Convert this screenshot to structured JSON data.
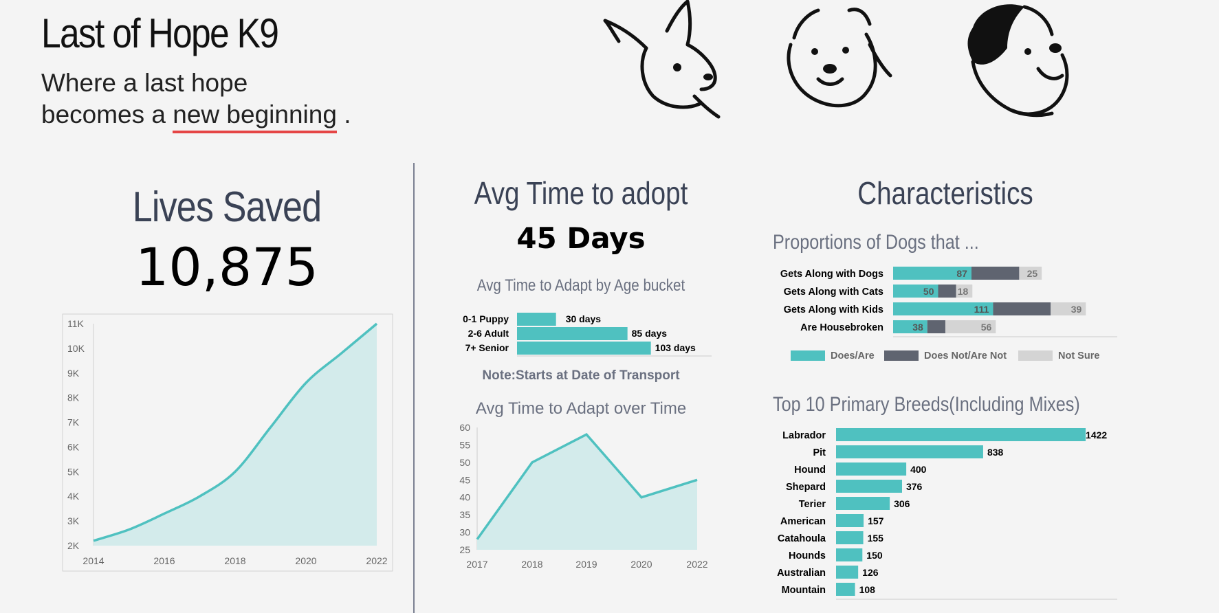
{
  "brand": {
    "title": "Last of Hope K9",
    "tagline_line1": "Where a last hope",
    "tagline_line2_pre": "becomes a ",
    "tagline_line2_underline": "new beginning",
    "tagline_line2_post": " ."
  },
  "lives": {
    "title": "Lives Saved",
    "value": "10,875"
  },
  "adopt": {
    "title": "Avg Time to adopt",
    "value": "45 Days"
  },
  "characteristics": {
    "title": "Characteristics"
  },
  "colors": {
    "teal": "#4fc1c0",
    "teal_fill": "#d3ebeb",
    "dark": "#5f6470",
    "light": "#d4d4d4",
    "accent_red": "#e54545"
  },
  "chart_data": [
    {
      "id": "lives",
      "type": "area",
      "x": [
        2014,
        2015,
        2016,
        2017,
        2018,
        2019,
        2020,
        2021,
        2022
      ],
      "values": [
        2200,
        2650,
        3300,
        4000,
        5000,
        6800,
        8600,
        9800,
        11000
      ],
      "x_ticks": [
        "2014",
        "2016",
        "2018",
        "2020",
        "2022"
      ],
      "y_ticks": [
        "2K",
        "3K",
        "4K",
        "5K",
        "6K",
        "7K",
        "8K",
        "9K",
        "10K",
        "11K"
      ],
      "ylim": [
        2000,
        11000
      ]
    },
    {
      "id": "age",
      "type": "bar",
      "title": "Avg Time to Adapt by Age bucket",
      "categories": [
        "0-1 Puppy",
        "2-6 Adult",
        "7+ Senior"
      ],
      "values": [
        30,
        85,
        103
      ],
      "labels": [
        "30 days",
        "85 days",
        "103 days"
      ]
    },
    {
      "id": "time",
      "type": "area",
      "title": "Avg Time to Adapt over Time",
      "x": [
        2017,
        2018,
        2019,
        2020,
        2022
      ],
      "values": [
        28,
        50,
        58,
        40,
        45
      ],
      "x_ticks": [
        "2017",
        "2018",
        "2019",
        "2020",
        "2022"
      ],
      "y_ticks": [
        "25",
        "30",
        "35",
        "40",
        "45",
        "50",
        "55",
        "60"
      ],
      "ylim": [
        25,
        60
      ]
    },
    {
      "id": "proportions",
      "type": "bar",
      "stacked": true,
      "title": "Proportions of Dogs that ...",
      "categories": [
        "Gets Along with Dogs",
        "Gets Along with Cats",
        "Gets Along with Kids",
        "Are Housebroken"
      ],
      "series": [
        {
          "name": "Does/Are",
          "values": [
            87,
            50,
            111,
            38
          ]
        },
        {
          "name": "Does Not/Are Not",
          "values": [
            53,
            20,
            64,
            20
          ]
        },
        {
          "name": "Not Sure",
          "values": [
            25,
            18,
            39,
            56
          ]
        }
      ],
      "value_labels": [
        [
          "87",
          "",
          "25"
        ],
        [
          "50",
          "",
          "18"
        ],
        [
          "111",
          "",
          "39"
        ],
        [
          "38",
          "",
          "56"
        ]
      ],
      "legend": "bottom"
    },
    {
      "id": "breeds",
      "type": "bar",
      "title": "Top 10 Primary Breeds(Including Mixes)",
      "categories": [
        "Labrador",
        "Pit",
        "Hound",
        "Shepard",
        "Terier",
        "American",
        "Catahoula",
        "Hounds",
        "Australian",
        "Mountain"
      ],
      "values": [
        1422,
        838,
        400,
        376,
        306,
        157,
        155,
        150,
        126,
        108
      ]
    }
  ]
}
